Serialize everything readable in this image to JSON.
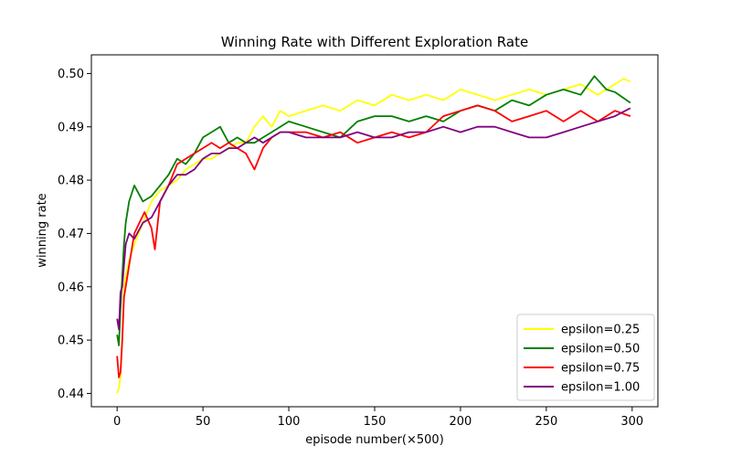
{
  "chart_data": {
    "type": "line",
    "title": "Winning Rate with Different Exploration Rate",
    "xlabel": "episode number(×500)",
    "ylabel": "winning rate",
    "xlim": [
      -15,
      315
    ],
    "ylim": [
      0.4375,
      0.5035
    ],
    "xticks": [
      0,
      50,
      100,
      150,
      200,
      250,
      300
    ],
    "yticks": [
      0.44,
      0.45,
      0.46,
      0.47,
      0.48,
      0.49,
      0.5
    ],
    "ytick_labels": [
      "0.44",
      "0.45",
      "0.46",
      "0.47",
      "0.48",
      "0.49",
      "0.50"
    ],
    "grid": false,
    "legend_position": "lower-right",
    "x": [
      0,
      10,
      20,
      30,
      40,
      50,
      60,
      70,
      80,
      90,
      100,
      110,
      120,
      130,
      140,
      150,
      160,
      170,
      180,
      190,
      200,
      210,
      220,
      230,
      240,
      250,
      260,
      270,
      280,
      290,
      299
    ],
    "series": [
      {
        "name": "epsilon=0.25",
        "color": "#ffff00",
        "x": [
          0,
          1,
          2,
          3,
          4,
          5,
          7,
          10,
          15,
          20,
          25,
          30,
          35,
          40,
          45,
          50,
          55,
          60,
          65,
          70,
          75,
          80,
          85,
          90,
          95,
          100,
          110,
          120,
          130,
          140,
          150,
          160,
          170,
          180,
          190,
          200,
          210,
          220,
          230,
          240,
          250,
          260,
          270,
          280,
          290,
          295,
          299
        ],
        "values": [
          0.44,
          0.441,
          0.443,
          0.45,
          0.46,
          0.462,
          0.465,
          0.468,
          0.472,
          0.476,
          0.478,
          0.479,
          0.48,
          0.482,
          0.483,
          0.484,
          0.484,
          0.485,
          0.486,
          0.487,
          0.487,
          0.49,
          0.492,
          0.49,
          0.493,
          0.492,
          0.493,
          0.494,
          0.493,
          0.495,
          0.494,
          0.496,
          0.495,
          0.496,
          0.495,
          0.497,
          0.496,
          0.495,
          0.496,
          0.497,
          0.496,
          0.497,
          0.498,
          0.496,
          0.498,
          0.499,
          0.4985
        ]
      },
      {
        "name": "epsilon=0.50",
        "color": "#008000",
        "x": [
          0,
          1,
          2,
          3,
          4,
          5,
          7,
          10,
          15,
          20,
          25,
          30,
          35,
          40,
          45,
          50,
          55,
          60,
          65,
          70,
          75,
          80,
          85,
          90,
          95,
          100,
          110,
          120,
          130,
          140,
          150,
          160,
          170,
          180,
          190,
          200,
          210,
          220,
          230,
          240,
          250,
          260,
          270,
          278,
          285,
          290,
          299
        ],
        "values": [
          0.451,
          0.449,
          0.456,
          0.462,
          0.468,
          0.472,
          0.476,
          0.479,
          0.476,
          0.477,
          0.479,
          0.481,
          0.484,
          0.483,
          0.485,
          0.488,
          0.489,
          0.49,
          0.487,
          0.488,
          0.487,
          0.487,
          0.488,
          0.489,
          0.49,
          0.491,
          0.49,
          0.489,
          0.488,
          0.491,
          0.492,
          0.492,
          0.491,
          0.492,
          0.491,
          0.493,
          0.494,
          0.493,
          0.495,
          0.494,
          0.496,
          0.497,
          0.496,
          0.4995,
          0.497,
          0.4965,
          0.4945
        ]
      },
      {
        "name": "epsilon=0.75",
        "color": "#ff0000",
        "x": [
          0,
          1,
          2,
          3,
          4,
          5,
          7,
          10,
          13,
          16,
          20,
          22,
          25,
          30,
          35,
          40,
          45,
          50,
          55,
          60,
          65,
          70,
          75,
          80,
          85,
          90,
          95,
          100,
          110,
          120,
          130,
          140,
          150,
          160,
          170,
          180,
          190,
          200,
          210,
          220,
          230,
          240,
          250,
          260,
          270,
          280,
          290,
          299
        ],
        "values": [
          0.447,
          0.443,
          0.444,
          0.45,
          0.458,
          0.46,
          0.464,
          0.47,
          0.472,
          0.474,
          0.471,
          0.467,
          0.476,
          0.479,
          0.483,
          0.484,
          0.485,
          0.486,
          0.487,
          0.486,
          0.487,
          0.486,
          0.485,
          0.482,
          0.486,
          0.488,
          0.489,
          0.489,
          0.489,
          0.488,
          0.489,
          0.487,
          0.488,
          0.489,
          0.488,
          0.489,
          0.492,
          0.493,
          0.494,
          0.493,
          0.491,
          0.492,
          0.493,
          0.491,
          0.493,
          0.491,
          0.493,
          0.492
        ]
      },
      {
        "name": "epsilon=1.00",
        "color": "#800080",
        "x": [
          0,
          1,
          2,
          3,
          4,
          5,
          7,
          10,
          15,
          20,
          25,
          30,
          35,
          40,
          45,
          50,
          55,
          60,
          65,
          70,
          75,
          80,
          85,
          90,
          95,
          100,
          110,
          120,
          130,
          140,
          150,
          160,
          170,
          180,
          190,
          200,
          210,
          220,
          230,
          240,
          250,
          260,
          270,
          280,
          290,
          299
        ],
        "values": [
          0.454,
          0.452,
          0.459,
          0.46,
          0.464,
          0.468,
          0.47,
          0.469,
          0.472,
          0.473,
          0.476,
          0.479,
          0.481,
          0.481,
          0.482,
          0.484,
          0.485,
          0.485,
          0.486,
          0.486,
          0.487,
          0.488,
          0.487,
          0.488,
          0.489,
          0.489,
          0.488,
          0.488,
          0.488,
          0.489,
          0.488,
          0.488,
          0.489,
          0.489,
          0.49,
          0.489,
          0.49,
          0.49,
          0.489,
          0.488,
          0.488,
          0.489,
          0.49,
          0.491,
          0.492,
          0.4935
        ]
      }
    ]
  }
}
